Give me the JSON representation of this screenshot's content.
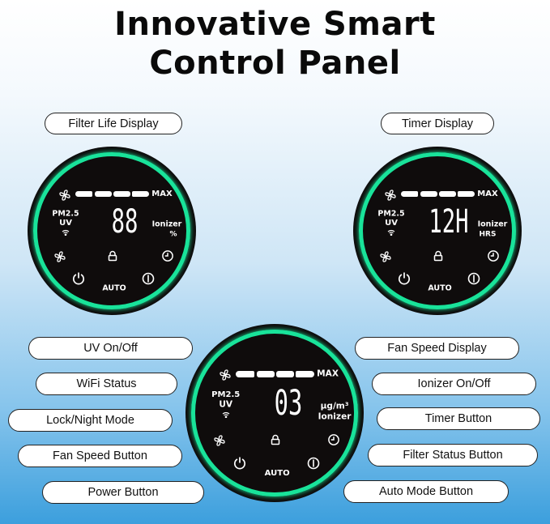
{
  "title": {
    "line1": "Innovative Smart",
    "line2": "Control Panel"
  },
  "colors": {
    "ring": "#19e39a",
    "panel": "#0f0c0c",
    "background_bottom": "#3c9fdd"
  },
  "top_labels": {
    "filter_life": "Filter Life Display",
    "timer_display": "Timer Display"
  },
  "left_labels": [
    "UV On/Off",
    "WiFi Status",
    "Lock/Night Mode",
    "Fan Speed Button",
    "Power Button"
  ],
  "right_labels": [
    "Fan Speed Display",
    "Ionizer On/Off",
    "Timer Button",
    "Filter Status Button",
    "Auto Mode Button"
  ],
  "panels": [
    {
      "digits": "88",
      "unit_top": "Ionizer",
      "unit_bottom": "%",
      "max": "MAX",
      "pm": "PM2.5",
      "uv": "UV",
      "auto": "AUTO"
    },
    {
      "digits": "12H",
      "unit_top": "Ionizer",
      "unit_bottom": "HRS",
      "max": "MAX",
      "pm": "PM2.5",
      "uv": "UV",
      "auto": "AUTO"
    },
    {
      "digits": "03",
      "unit_top": "μg/m³",
      "unit_bottom": "Ionizer",
      "max": "MAX",
      "pm": "PM2.5",
      "uv": "UV",
      "auto": "AUTO"
    }
  ],
  "icons": [
    "fan-icon",
    "wifi-icon",
    "lock-icon",
    "clock-icon",
    "power-icon",
    "filter-icon"
  ]
}
